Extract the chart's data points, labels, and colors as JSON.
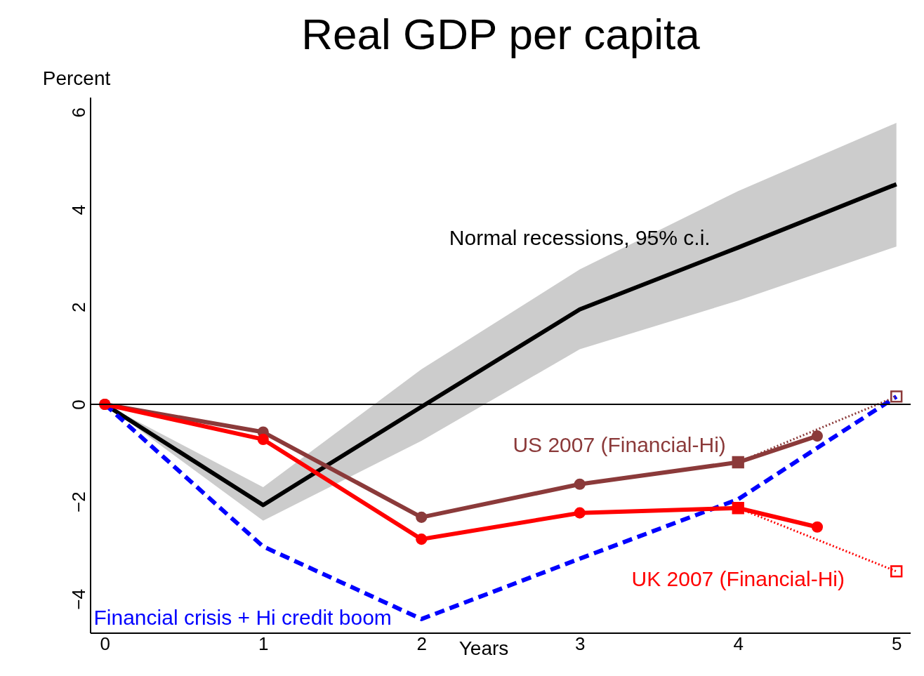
{
  "chart_data": {
    "type": "line",
    "title": "Real GDP per capita",
    "xlabel": "Years",
    "ylabel": "Percent",
    "x": [
      0,
      1,
      2,
      3,
      4,
      5
    ],
    "xlim": [
      -0.09,
      5.09
    ],
    "ylim": [
      -4.7,
      6.3
    ],
    "xticks": [
      0,
      1,
      2,
      3,
      4,
      5
    ],
    "yticks": [
      -4,
      -2,
      0,
      2,
      4,
      6
    ],
    "grid": false,
    "ref_lines": [
      {
        "axis": "y",
        "value": 0,
        "color": "#000000",
        "line_style": "solid"
      }
    ],
    "series": [
      {
        "name": "Normal recessions, 95% c.i.",
        "color": "#000000",
        "values": [
          0,
          -2.07,
          -0.05,
          1.95,
          3.22,
          4.52
        ],
        "lower": [
          0,
          -2.39,
          -0.75,
          1.13,
          2.13,
          3.24
        ],
        "upper": [
          0,
          -1.7,
          0.72,
          2.77,
          4.38,
          5.78
        ],
        "marker": "none",
        "line_style": "solid"
      },
      {
        "name": "Financial crisis + Hi credit boom",
        "color": "#0000ff",
        "values": [
          0,
          -2.92,
          -4.41,
          -3.17,
          -1.95,
          0.16
        ],
        "marker": "none",
        "line_style": "dashed"
      },
      {
        "name": "US 2007 (Financial-Hi)",
        "color": "#8b3a3a",
        "x": [
          0,
          1,
          2,
          3,
          4,
          4.5
        ],
        "values": [
          0,
          -0.57,
          -2.32,
          -1.64,
          -1.19,
          -0.65
        ],
        "marker": "circle",
        "line_style": "solid"
      },
      {
        "name": "UK 2007 (Financial-Hi)",
        "color": "#ff0000",
        "x": [
          0,
          1,
          2,
          3,
          4,
          4.5
        ],
        "values": [
          0,
          -0.72,
          -2.77,
          -2.23,
          -2.13,
          -2.52
        ],
        "marker": "circle",
        "line_style": "solid"
      },
      {
        "color": "#8b3a3a",
        "x": [
          4,
          5
        ],
        "values": [
          -1.19,
          0.16
        ],
        "marker": "square",
        "line_style": "dotted"
      },
      {
        "color": "#ff0000",
        "x": [
          4,
          5
        ],
        "values": [
          -2.13,
          -3.43
        ],
        "marker": "square",
        "line_style": "dotted"
      }
    ]
  }
}
